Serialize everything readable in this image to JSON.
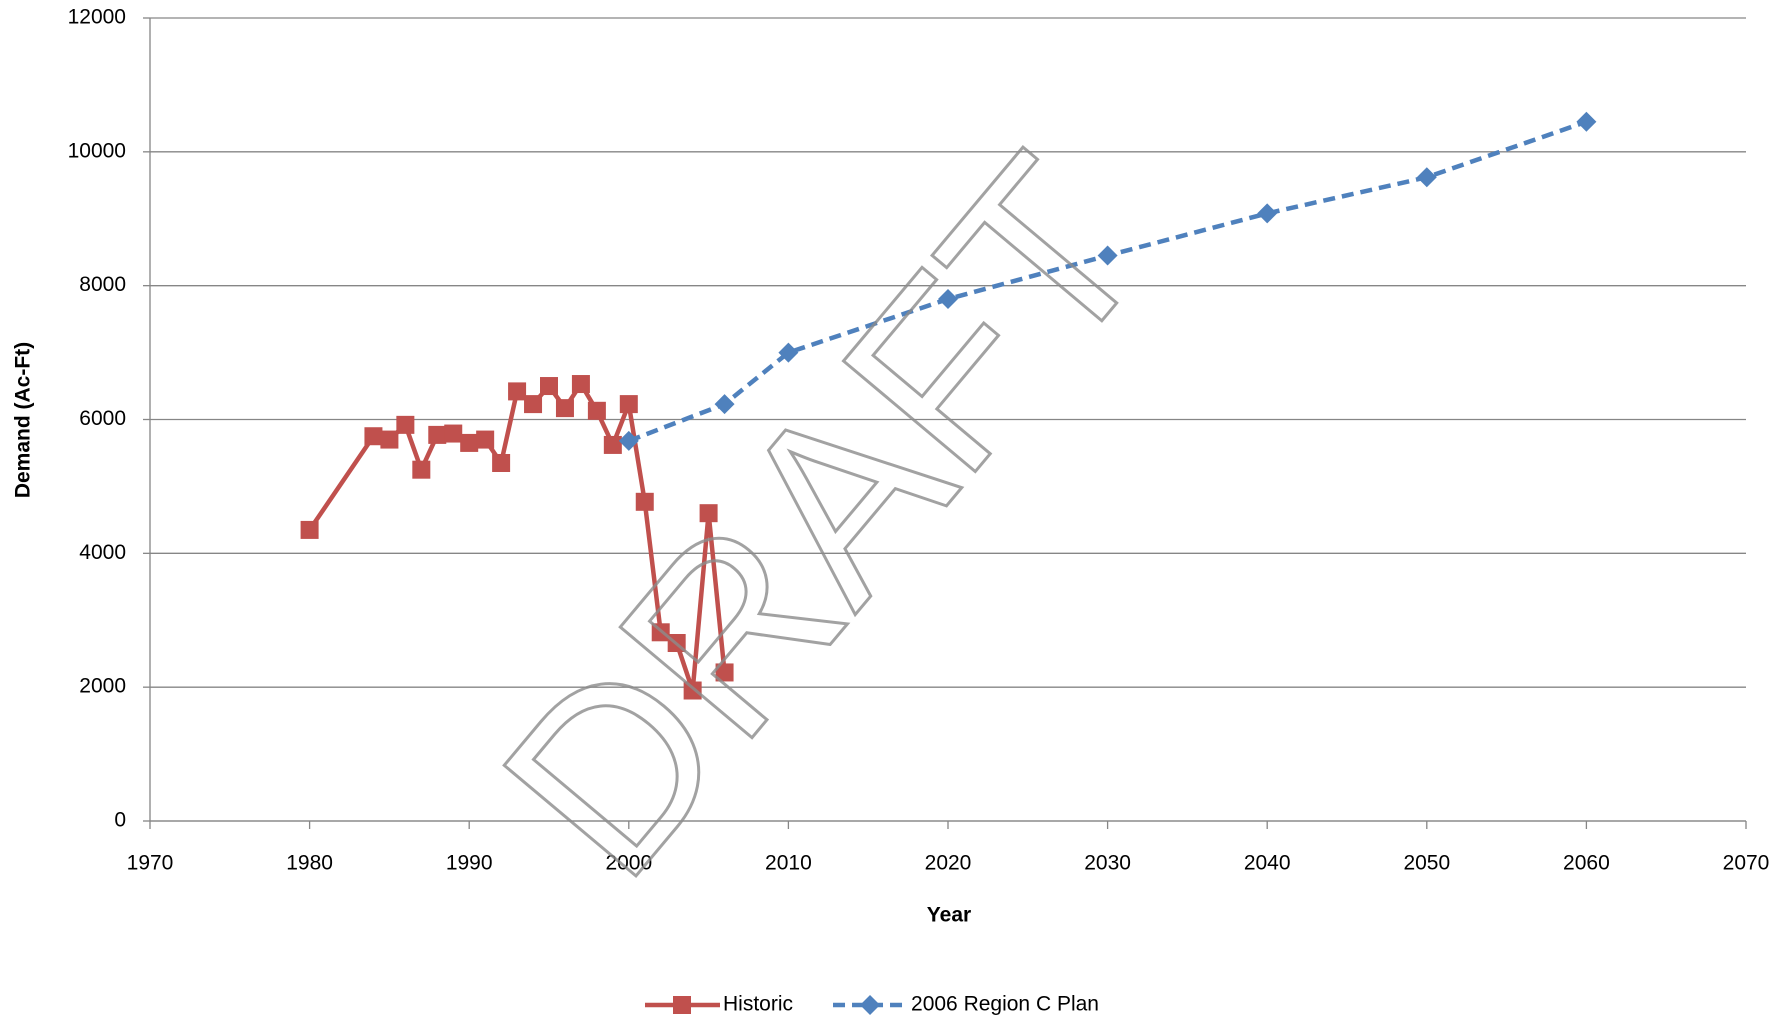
{
  "chart_data": {
    "type": "line",
    "xlabel": "Year",
    "ylabel": "Demand (Ac-Ft)",
    "watermark": "DRAFT",
    "xlim": [
      1970,
      2070
    ],
    "xticks": [
      1970,
      1980,
      1990,
      2000,
      2010,
      2020,
      2030,
      2040,
      2050,
      2060,
      2070
    ],
    "ylim": [
      0,
      12000
    ],
    "yticks": [
      0,
      2000,
      4000,
      6000,
      8000,
      10000,
      12000
    ],
    "grid": true,
    "legend": "bottom",
    "series": [
      {
        "name": "Historic",
        "color": "#c0504d",
        "marker": "square",
        "dash": "solid",
        "x": [
          1980,
          1984,
          1985,
          1986,
          1987,
          1988,
          1989,
          1990,
          1991,
          1992,
          1993,
          1994,
          1995,
          1996,
          1997,
          1998,
          1999,
          2000,
          2001,
          2002,
          2003,
          2004,
          2005,
          2006
        ],
        "values": [
          4350,
          5750,
          5700,
          5920,
          5250,
          5770,
          5790,
          5650,
          5700,
          5350,
          6420,
          6230,
          6500,
          6170,
          6530,
          6130,
          5620,
          6230,
          4770,
          2820,
          2660,
          1950,
          4600,
          2220
        ]
      },
      {
        "name": "2006 Region C Plan",
        "color": "#4f81bd",
        "marker": "diamond",
        "dash": "dashed",
        "x": [
          2000,
          2006,
          2010,
          2020,
          2030,
          2040,
          2050,
          2060
        ],
        "values": [
          5680,
          6230,
          7000,
          7800,
          8450,
          9080,
          9620,
          10450
        ]
      }
    ]
  }
}
